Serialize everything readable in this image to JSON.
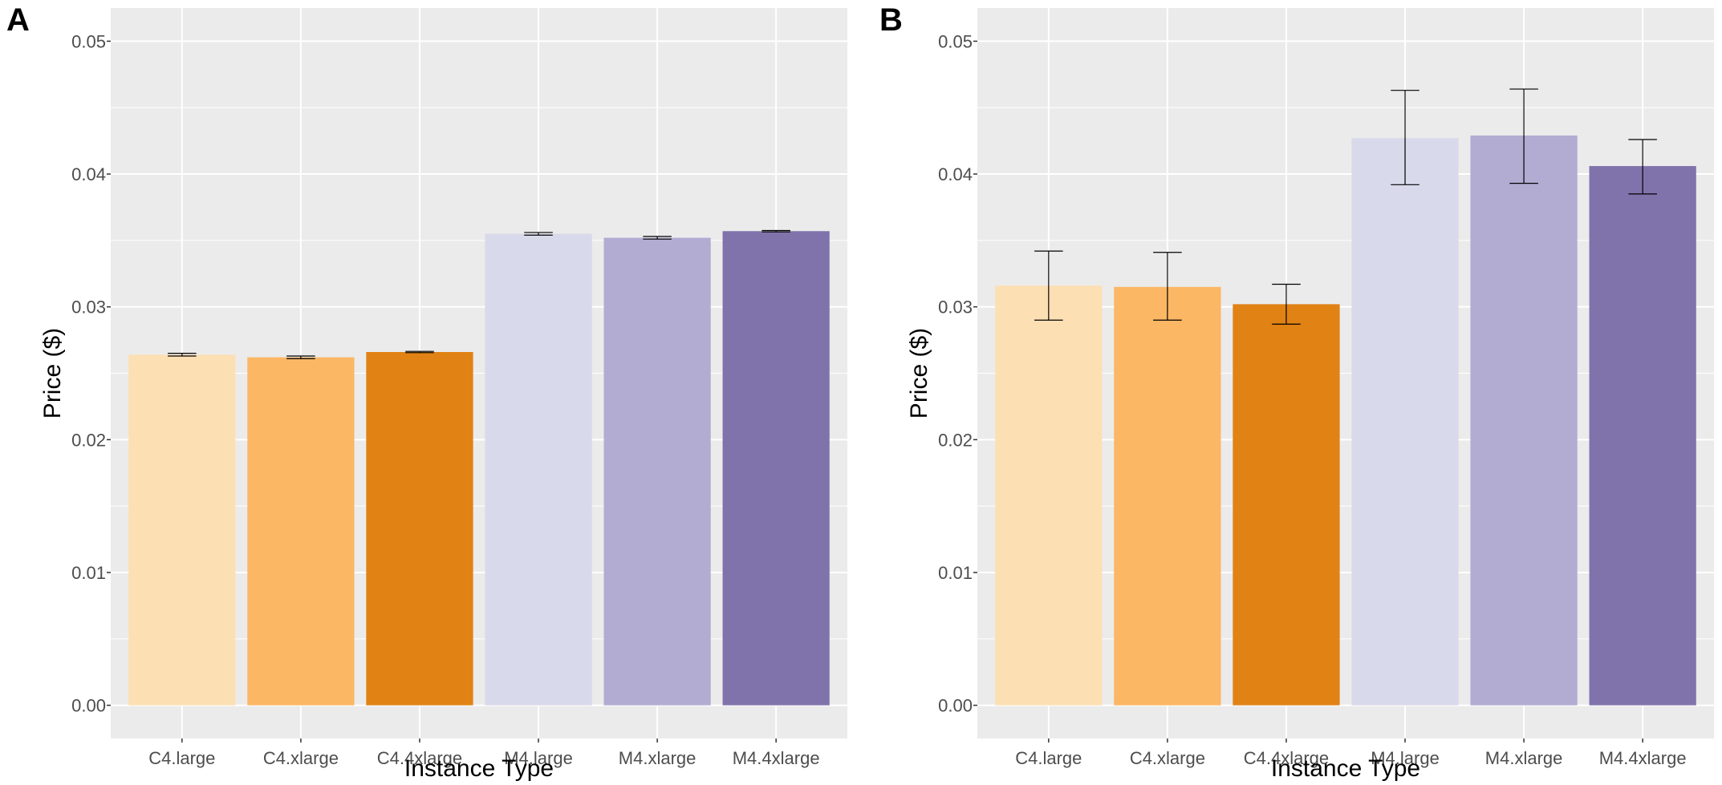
{
  "figure": {
    "colors": {
      "panel_background": "#ebebeb",
      "grid": "#ffffff",
      "error_bar": "#000000",
      "tick_text": "#4d4d4d"
    },
    "bar_colors": [
      "#fddfb4",
      "#fbb763",
      "#e08214",
      "#d8d9ea",
      "#b2acd3",
      "#8073ac"
    ]
  },
  "chart_data": [
    {
      "panel": "A",
      "type": "bar",
      "xlabel": "Instance Type",
      "ylabel": "Price ($)",
      "ylim": [
        -0.0025,
        0.0525
      ],
      "yticks": [
        0.0,
        0.01,
        0.02,
        0.03,
        0.04,
        0.05
      ],
      "ytick_labels": [
        "0.00",
        "0.01",
        "0.02",
        "0.03",
        "0.04",
        "0.05"
      ],
      "categories": [
        "C4.large",
        "C4.xlarge",
        "C4.4xlarge",
        "M4.large",
        "M4.xlarge",
        "M4.4xlarge"
      ],
      "values": [
        0.0264,
        0.0262,
        0.0266,
        0.0355,
        0.0352,
        0.0357
      ],
      "error_low": [
        0.0263,
        0.0261,
        0.02655,
        0.0354,
        0.0351,
        0.03565
      ],
      "error_high": [
        0.0265,
        0.0263,
        0.02665,
        0.0356,
        0.0353,
        0.03575
      ],
      "grid": true
    },
    {
      "panel": "B",
      "type": "bar",
      "xlabel": "Instance Type",
      "ylabel": "Price ($)",
      "ylim": [
        -0.0025,
        0.0525
      ],
      "yticks": [
        0.0,
        0.01,
        0.02,
        0.03,
        0.04,
        0.05
      ],
      "ytick_labels": [
        "0.00",
        "0.01",
        "0.02",
        "0.03",
        "0.04",
        "0.05"
      ],
      "categories": [
        "C4.large",
        "C4.xlarge",
        "C4.4xlarge",
        "M4.large",
        "M4.xlarge",
        "M4.4xlarge"
      ],
      "values": [
        0.0316,
        0.0315,
        0.0302,
        0.0427,
        0.0429,
        0.0406
      ],
      "error_low": [
        0.029,
        0.029,
        0.0287,
        0.0392,
        0.0393,
        0.0385
      ],
      "error_high": [
        0.0342,
        0.0341,
        0.0317,
        0.0463,
        0.0464,
        0.0426
      ],
      "grid": true
    }
  ]
}
